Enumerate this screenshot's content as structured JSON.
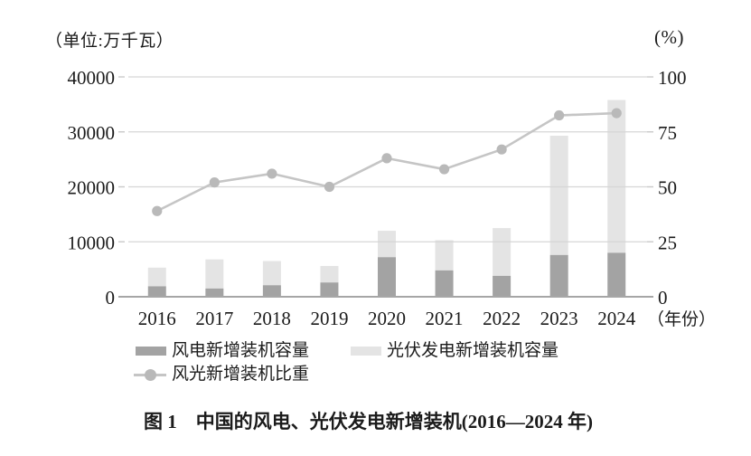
{
  "units": {
    "left": "（单位:万千瓦）",
    "right": "(%)"
  },
  "legend": {
    "wind_label": "风电新增装机容量",
    "solar_label": "光伏发电新增装机容量",
    "ratio_label": "风光新增装机比重"
  },
  "caption": "图 1　中国的风电、光伏发电新增装机(2016—2024 年)",
  "colors": {
    "wind_bar": "#a3a3a3",
    "solar_bar": "#e4e4e4",
    "ratio_line": "#c5c5c5",
    "ratio_marker": "#b9b9b9",
    "grid": "#d6d6d6",
    "tick": "#c9c9c9",
    "axis": "#a6a6a6",
    "text": "#1b1b1b",
    "background": "#ffffff"
  },
  "chart_data": {
    "type": "bar",
    "subtype": "stacked bars (left axis) + line with markers (right axis)",
    "title": "图 1　中国的风电、光伏发电新增装机(2016—2024 年)",
    "categories": [
      "2016",
      "2017",
      "2018",
      "2019",
      "2020",
      "2021",
      "2022",
      "2023",
      "2024"
    ],
    "series": [
      {
        "name": "风电新增装机容量",
        "type": "bar",
        "stacked": true,
        "axis": "left",
        "unit": "万千瓦",
        "color": "#a3a3a3",
        "values": [
          1900,
          1500,
          2100,
          2600,
          7200,
          4800,
          3800,
          7600,
          8000
        ]
      },
      {
        "name": "光伏发电新增装机容量",
        "type": "bar",
        "stacked": true,
        "axis": "left",
        "unit": "万千瓦",
        "color": "#e4e4e4",
        "values": [
          3400,
          5300,
          4400,
          3000,
          4800,
          5500,
          8700,
          21700,
          27800
        ]
      },
      {
        "name": "风光新增装机比重",
        "type": "line",
        "axis": "right",
        "unit": "%",
        "color": "#c5c5c5",
        "marker_color": "#b9b9b9",
        "values": [
          39,
          52,
          56,
          50,
          63,
          58,
          67,
          82.5,
          83.5
        ]
      }
    ],
    "axes": {
      "left": {
        "label": "（单位:万千瓦）",
        "range": [
          0,
          40000
        ],
        "ticks": [
          0,
          10000,
          20000,
          30000,
          40000
        ]
      },
      "right": {
        "label": "(%)",
        "range": [
          0,
          100
        ],
        "ticks": [
          0,
          25,
          50,
          75,
          100
        ]
      },
      "x": {
        "label": "（年份）"
      }
    },
    "grid": true,
    "legend_position": "bottom"
  }
}
